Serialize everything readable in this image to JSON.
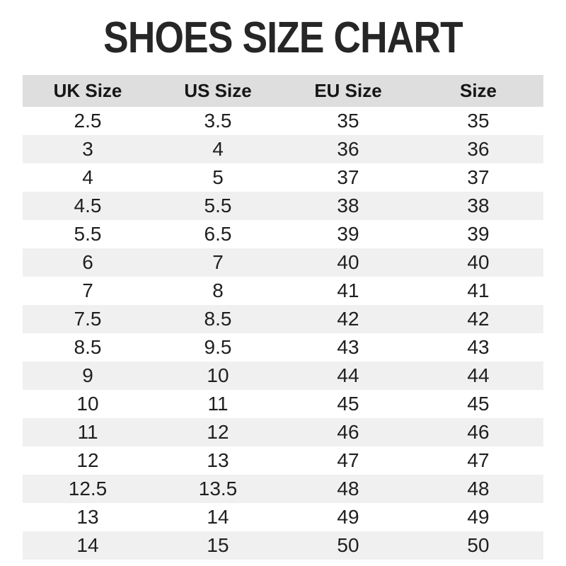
{
  "title": "SHOES SIZE CHART",
  "table": {
    "columns": [
      "UK Size",
      "US Size",
      "EU Size",
      "Size"
    ],
    "rows": [
      [
        "2.5",
        "3.5",
        "35",
        "35"
      ],
      [
        "3",
        "4",
        "36",
        "36"
      ],
      [
        "4",
        "5",
        "37",
        "37"
      ],
      [
        "4.5",
        "5.5",
        "38",
        "38"
      ],
      [
        "5.5",
        "6.5",
        "39",
        "39"
      ],
      [
        "6",
        "7",
        "40",
        "40"
      ],
      [
        "7",
        "8",
        "41",
        "41"
      ],
      [
        "7.5",
        "8.5",
        "42",
        "42"
      ],
      [
        "8.5",
        "9.5",
        "43",
        "43"
      ],
      [
        "9",
        "10",
        "44",
        "44"
      ],
      [
        "10",
        "11",
        "45",
        "45"
      ],
      [
        "11",
        "12",
        "46",
        "46"
      ],
      [
        "12",
        "13",
        "47",
        "47"
      ],
      [
        "12.5",
        "13.5",
        "48",
        "48"
      ],
      [
        "13",
        "14",
        "49",
        "49"
      ],
      [
        "14",
        "15",
        "50",
        "50"
      ]
    ]
  },
  "colors": {
    "header_bg": "#dedede",
    "stripe_bg": "#f0f0f0",
    "text": "#1f1f1f",
    "title": "#262626"
  },
  "chart_data": {
    "type": "table",
    "title": "SHOES SIZE CHART",
    "columns": [
      "UK Size",
      "US Size",
      "EU Size",
      "Size"
    ],
    "rows": [
      [
        "2.5",
        "3.5",
        "35",
        "35"
      ],
      [
        "3",
        "4",
        "36",
        "36"
      ],
      [
        "4",
        "5",
        "37",
        "37"
      ],
      [
        "4.5",
        "5.5",
        "38",
        "38"
      ],
      [
        "5.5",
        "6.5",
        "39",
        "39"
      ],
      [
        "6",
        "7",
        "40",
        "40"
      ],
      [
        "7",
        "8",
        "41",
        "41"
      ],
      [
        "7.5",
        "8.5",
        "42",
        "42"
      ],
      [
        "8.5",
        "9.5",
        "43",
        "43"
      ],
      [
        "9",
        "10",
        "44",
        "44"
      ],
      [
        "10",
        "11",
        "45",
        "45"
      ],
      [
        "11",
        "12",
        "46",
        "46"
      ],
      [
        "12",
        "13",
        "47",
        "47"
      ],
      [
        "12.5",
        "13.5",
        "48",
        "48"
      ],
      [
        "13",
        "14",
        "49",
        "49"
      ],
      [
        "14",
        "15",
        "50",
        "50"
      ]
    ],
    "layout": {
      "zebra_striping": true,
      "striped_rows": "even (2nd, 4th, ...)",
      "header_background": "#dedede",
      "stripe_background": "#f0f0f0"
    }
  }
}
